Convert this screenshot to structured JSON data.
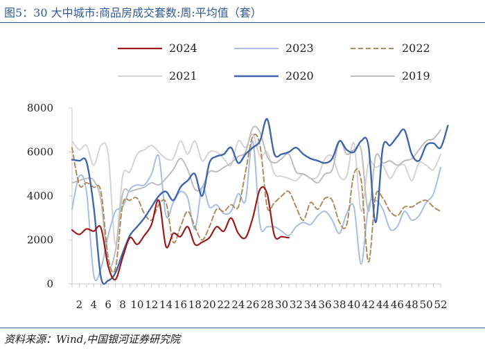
{
  "header": {
    "title": "图5：30 大中城市:商品房成交套数:周:平均值（套）"
  },
  "footer": {
    "source": "资料来源：Wind,中国银河证券研究院"
  },
  "colors": {
    "rule": "#2f5a97",
    "axis": "#c8c8c8"
  },
  "chart_data": {
    "type": "line",
    "xlabel": "",
    "ylabel": "",
    "xlim": [
      1,
      52
    ],
    "ylim": [
      0,
      8000
    ],
    "y_ticks": [
      0,
      2000,
      4000,
      6000,
      8000
    ],
    "x_ticks": [
      2,
      4,
      6,
      8,
      10,
      12,
      14,
      16,
      18,
      20,
      22,
      24,
      26,
      28,
      30,
      32,
      34,
      36,
      38,
      40,
      42,
      44,
      46,
      48,
      50,
      52
    ],
    "grid": false,
    "legend_position": "top",
    "series": [
      {
        "name": "2024",
        "color": "#9b1b1b",
        "dash": "",
        "width": 2.2,
        "values": [
          2450,
          2250,
          2500,
          2400,
          2550,
          800,
          200,
          1200,
          2100,
          1800,
          2200,
          2700,
          3800,
          1700,
          2300,
          2150,
          2600,
          1800,
          1900,
          2100,
          2600,
          2400,
          3000,
          2300,
          2100,
          3000,
          4300,
          4100,
          2200,
          2150,
          2100
        ]
      },
      {
        "name": "2023",
        "color": "#a7bee3",
        "dash": "",
        "width": 2,
        "values": [
          3400,
          4900,
          4200,
          400,
          700,
          2200,
          3300,
          3500,
          4300,
          4500,
          4500,
          5000,
          5800,
          3100,
          3700,
          4200,
          3900,
          2500,
          4400,
          3500,
          3600,
          3200,
          3300,
          4100,
          3800,
          6500,
          2700,
          2600,
          2600,
          2400,
          2200,
          2600,
          2800,
          2700,
          3100,
          3300,
          2900,
          2300,
          3200,
          3500,
          900,
          3500,
          3800,
          3400,
          2500,
          2600,
          3300,
          2900,
          3100,
          3700,
          4100,
          5300
        ]
      },
      {
        "name": "2022",
        "color": "#b08a5a",
        "dash": "7 4",
        "width": 2,
        "values": [
          6200,
          4500,
          4600,
          4400,
          4200,
          1200,
          700,
          3600,
          3800,
          3900,
          3200,
          2900,
          3600,
          3700,
          1900,
          2600,
          3300,
          2600,
          2000,
          2600,
          3400,
          3300,
          3600,
          3500,
          5100,
          6700,
          6300,
          3500,
          3700,
          4000,
          4200,
          3500,
          2900,
          3700,
          3400,
          3900,
          3800,
          2800,
          2700,
          5000,
          4700,
          1000,
          4000,
          3900,
          3300,
          3100,
          3500,
          3500,
          3700,
          3800,
          3500,
          3300
        ]
      },
      {
        "name": "2021",
        "color": "#d4d4d4",
        "dash": "",
        "width": 2,
        "values": [
          6500,
          6100,
          6300,
          5400,
          6300,
          5900,
          1800,
          4900,
          5100,
          5900,
          6100,
          6300,
          6000,
          5700,
          5700,
          6500,
          5900,
          6500,
          5600,
          6000,
          6000,
          5700,
          5400,
          6500,
          6200,
          6800,
          5800,
          6000,
          5000,
          4900,
          4800,
          4700,
          5000,
          4800,
          4900,
          5700,
          5800,
          4900,
          4900,
          6400,
          3300,
          5500,
          5300,
          5400,
          4800,
          5300,
          5400,
          4700,
          5500,
          5400,
          5200,
          5900
        ]
      },
      {
        "name": "2020",
        "color": "#3f66ad",
        "dash": "",
        "width": 2.4,
        "values": [
          5650,
          5600,
          5550,
          3500,
          300,
          150,
          500,
          1400,
          2200,
          2600,
          3000,
          3500,
          4000,
          4200,
          3800,
          4400,
          4700,
          5000,
          4000,
          5500,
          5800,
          5900,
          6200,
          5500,
          5900,
          6200,
          6500,
          7500,
          5900,
          5900,
          6000,
          6200,
          5900,
          5700,
          5600,
          5500,
          5700,
          6500,
          6100,
          6000,
          6500,
          6300,
          2800,
          6200,
          6300,
          6700,
          7000,
          5900,
          5600,
          6300,
          6400,
          6200,
          7200
        ]
      },
      {
        "name": "2019",
        "color": "#bdbdbd",
        "dash": "",
        "width": 2,
        "values": [
          4600,
          4700,
          4800,
          4700,
          3800,
          900,
          1500,
          4100,
          4200,
          4300,
          4400,
          4600,
          4500,
          4800,
          5200,
          5700,
          5200,
          4300,
          4400,
          5100,
          5100,
          5300,
          5500,
          5800,
          6000,
          7100,
          6900,
          5800,
          5500,
          5700,
          5900,
          5100,
          5000,
          4800,
          4600,
          5000,
          5200,
          6500,
          5900,
          6100,
          6100,
          3300,
          5800,
          5500,
          5600,
          5400,
          5600,
          5700,
          6100,
          6500,
          6600,
          7000
        ]
      }
    ]
  }
}
